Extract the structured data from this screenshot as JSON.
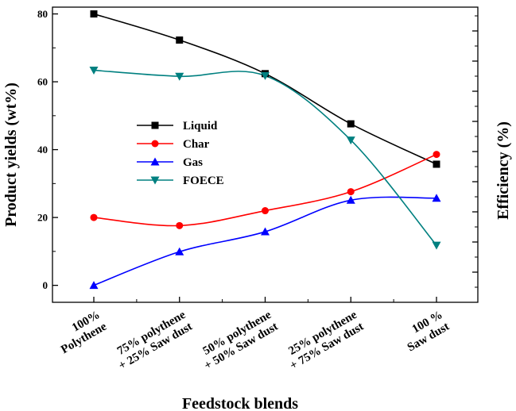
{
  "chart_data": {
    "type": "line",
    "xlabel": "Feedstock blends",
    "ylabel": "Product yields (wt%)",
    "y2label": "Efficiency (%)",
    "ylim": [
      -5,
      82
    ],
    "yticks": [
      0,
      20,
      40,
      60,
      80
    ],
    "y2_ticks_labeled": false,
    "grid": false,
    "legend_position": "center-left",
    "categories": [
      [
        "100%",
        "Polythene"
      ],
      [
        "75% polythene",
        "+ 25% Saw dust"
      ],
      [
        "50% polythene",
        "+ 50% Saw dust"
      ],
      [
        "25% polythene",
        "+ 75% Saw dust"
      ],
      [
        "100 %",
        "Saw dust"
      ]
    ],
    "series": [
      {
        "name": "Liquid",
        "color": "#000000",
        "marker": "square",
        "values": [
          80,
          72.3,
          62.4,
          47.6,
          35.7
        ]
      },
      {
        "name": "Char",
        "color": "#ff0000",
        "marker": "circle",
        "values": [
          20,
          17.6,
          22,
          27.6,
          38.6
        ]
      },
      {
        "name": "Gas",
        "color": "#0000ff",
        "marker": "triangle-up",
        "values": [
          0,
          9.9,
          15.8,
          25.1,
          25.7
        ]
      },
      {
        "name": "FOECE",
        "color": "#008080",
        "marker": "triangle-down",
        "values": [
          63.4,
          61.6,
          61.8,
          42.8,
          11.8
        ]
      }
    ]
  }
}
